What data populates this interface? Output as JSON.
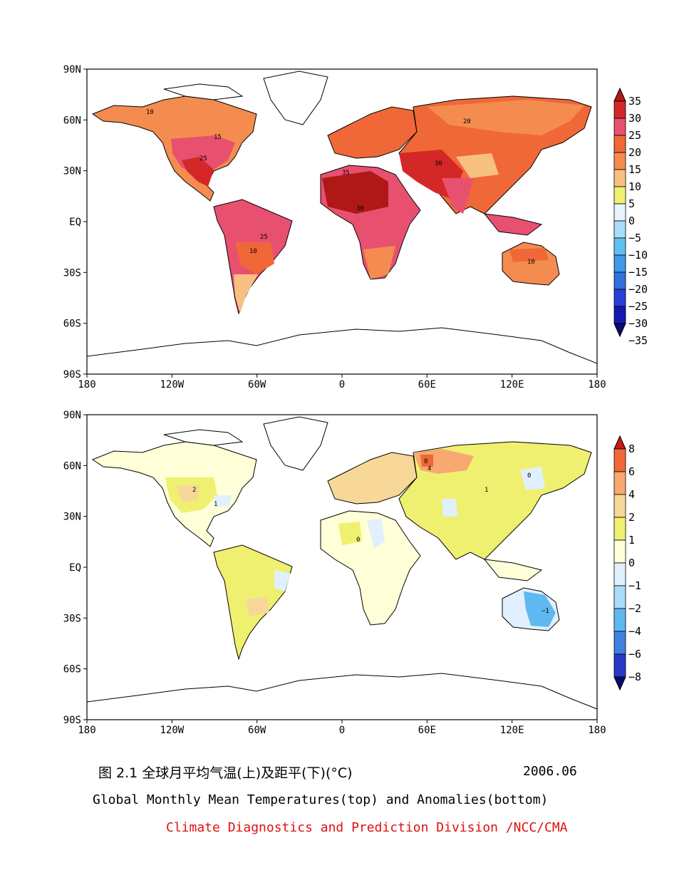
{
  "top_map": {
    "lat_ticks": [
      "90N",
      "60N",
      "30N",
      "EQ",
      "30S",
      "60S",
      "90S"
    ],
    "lon_ticks": [
      "180",
      "120W",
      "60W",
      "0",
      "60E",
      "120E",
      "180"
    ],
    "colorbar": {
      "labels": [
        "35",
        "30",
        "25",
        "20",
        "15",
        "10",
        "5",
        "0",
        "−5",
        "−10",
        "−15",
        "−20",
        "−25",
        "−30",
        "−35"
      ],
      "colors": [
        "#b01818",
        "#d42828",
        "#e85070",
        "#f06838",
        "#f48c50",
        "#f8c080",
        "#f0f070",
        "#e8f4ff",
        "#a8dcf8",
        "#60c0f0",
        "#4098e8",
        "#3070e0",
        "#2840d8",
        "#1818b0",
        "#0a0a70"
      ]
    },
    "contour_labels": [
      "10",
      "15",
      "20",
      "25",
      "30",
      "35"
    ]
  },
  "bottom_map": {
    "lat_ticks": [
      "90N",
      "60N",
      "30N",
      "EQ",
      "30S",
      "60S",
      "90S"
    ],
    "lon_ticks": [
      "180",
      "120W",
      "60W",
      "0",
      "60E",
      "120E",
      "180"
    ],
    "colorbar": {
      "labels": [
        "8",
        "6",
        "4",
        "2",
        "1",
        "0",
        "−1",
        "−2",
        "−4",
        "−6",
        "−8"
      ],
      "colors": [
        "#c81818",
        "#f06838",
        "#f8a870",
        "#f8d898",
        "#f0f070",
        "#ffffd8",
        "#e0f0ff",
        "#a8dcf8",
        "#60b8f0",
        "#4080e0",
        "#2838c8",
        "#0a0a70"
      ]
    },
    "contour_labels": [
      "0",
      "1",
      "2",
      "−1",
      "4",
      "8"
    ]
  },
  "caption": {
    "chinese": "图 2.1  全球月平均气温(上)及距平(下)(°C)",
    "date": "2006.06",
    "english": "Global Monthly Mean Temperatures(top) and Anomalies(bottom)",
    "organization": "Climate Diagnostics and Prediction Division /NCC/CMA"
  },
  "colors": {
    "organization_text": "#e01010",
    "land_outline": "#000000"
  }
}
